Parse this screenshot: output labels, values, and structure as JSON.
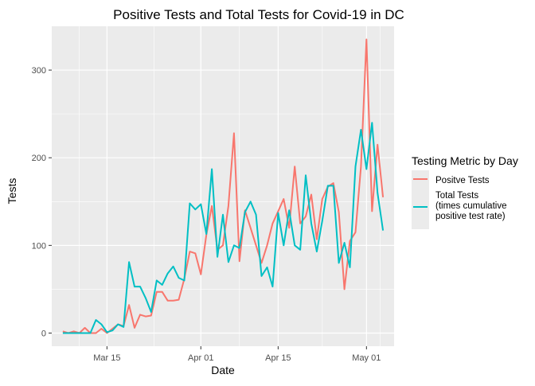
{
  "chart_data": {
    "type": "line",
    "title": "Positive Tests and Total Tests for Covid-19 in DC",
    "xlabel": "Date",
    "ylabel": "Tests",
    "x_ticks": [
      "Mar 15",
      "Apr 01",
      "Apr 15",
      "May 01"
    ],
    "y_ticks": [
      "0",
      "100",
      "200",
      "300"
    ],
    "ylim": [
      -15,
      350
    ],
    "grid": true,
    "legend": {
      "title": "Testing Metric by Day",
      "placement": "right",
      "entries": [
        "Positve Tests",
        "Total Tests\n(times cumulative\npositive test rate)"
      ]
    },
    "colors": {
      "positive": "#F8766D",
      "total": "#00BFC4",
      "panel": "#EBEBEB",
      "grid": "#FFFFFF",
      "text": "#000000",
      "tick_text": "#4D4D4D"
    },
    "series": [
      {
        "name": "Positve Tests",
        "key": "positive",
        "x": [
          "2020-03-07",
          "2020-03-08",
          "2020-03-09",
          "2020-03-10",
          "2020-03-11",
          "2020-03-12",
          "2020-03-13",
          "2020-03-14",
          "2020-03-15",
          "2020-03-16",
          "2020-03-17",
          "2020-03-18",
          "2020-03-19",
          "2020-03-20",
          "2020-03-21",
          "2020-03-22",
          "2020-03-23",
          "2020-03-24",
          "2020-03-25",
          "2020-03-26",
          "2020-03-27",
          "2020-03-28",
          "2020-03-29",
          "2020-03-30",
          "2020-03-31",
          "2020-04-01",
          "2020-04-02",
          "2020-04-03",
          "2020-04-04",
          "2020-04-05",
          "2020-04-06",
          "2020-04-07",
          "2020-04-08",
          "2020-04-09",
          "2020-04-10",
          "2020-04-11",
          "2020-04-12",
          "2020-04-13",
          "2020-04-14",
          "2020-04-15",
          "2020-04-16",
          "2020-04-17",
          "2020-04-18",
          "2020-04-19",
          "2020-04-20",
          "2020-04-21",
          "2020-04-22",
          "2020-04-23",
          "2020-04-24",
          "2020-04-25",
          "2020-04-26",
          "2020-04-27",
          "2020-04-28",
          "2020-04-29",
          "2020-04-30",
          "2020-05-01",
          "2020-05-02",
          "2020-05-03",
          "2020-05-04"
        ],
        "y": [
          2,
          0,
          2,
          0,
          6,
          0,
          0,
          5,
          0,
          5,
          10,
          8,
          32,
          6,
          21,
          19,
          20,
          47,
          47,
          37,
          37,
          38,
          62,
          93,
          91,
          67,
          112,
          145,
          95,
          100,
          145,
          228,
          82,
          140,
          120,
          100,
          80,
          100,
          125,
          139,
          153,
          120,
          190,
          125,
          133,
          158,
          107,
          153,
          167,
          171,
          138,
          50,
          105,
          115,
          190,
          335,
          139,
          215,
          155
        ]
      },
      {
        "name": "Total Tests\n(times cumulative\npositive test rate)",
        "key": "total",
        "x": [
          "2020-03-07",
          "2020-03-08",
          "2020-03-09",
          "2020-03-10",
          "2020-03-11",
          "2020-03-12",
          "2020-03-13",
          "2020-03-14",
          "2020-03-15",
          "2020-03-16",
          "2020-03-17",
          "2020-03-18",
          "2020-03-19",
          "2020-03-20",
          "2020-03-21",
          "2020-03-22",
          "2020-03-23",
          "2020-03-24",
          "2020-03-25",
          "2020-03-26",
          "2020-03-27",
          "2020-03-28",
          "2020-03-29",
          "2020-03-30",
          "2020-03-31",
          "2020-04-01",
          "2020-04-02",
          "2020-04-03",
          "2020-04-04",
          "2020-04-05",
          "2020-04-06",
          "2020-04-07",
          "2020-04-08",
          "2020-04-09",
          "2020-04-10",
          "2020-04-11",
          "2020-04-12",
          "2020-04-13",
          "2020-04-14",
          "2020-04-15",
          "2020-04-16",
          "2020-04-17",
          "2020-04-18",
          "2020-04-19",
          "2020-04-20",
          "2020-04-21",
          "2020-04-22",
          "2020-04-23",
          "2020-04-24",
          "2020-04-25",
          "2020-04-26",
          "2020-04-27",
          "2020-04-28",
          "2020-04-29",
          "2020-04-30",
          "2020-05-01",
          "2020-05-02",
          "2020-05-03",
          "2020-05-04"
        ],
        "y": [
          0,
          0,
          0,
          0,
          0,
          0,
          15,
          10,
          1,
          3,
          10,
          7,
          81,
          53,
          53,
          40,
          24,
          60,
          55,
          68,
          76,
          63,
          60,
          148,
          141,
          147,
          113,
          187,
          87,
          135,
          81,
          100,
          97,
          138,
          150,
          135,
          65,
          75,
          53,
          137,
          100,
          140,
          100,
          95,
          180,
          125,
          93,
          128,
          168,
          168,
          80,
          103,
          75,
          190,
          232,
          187,
          240,
          160,
          117
        ]
      }
    ]
  }
}
